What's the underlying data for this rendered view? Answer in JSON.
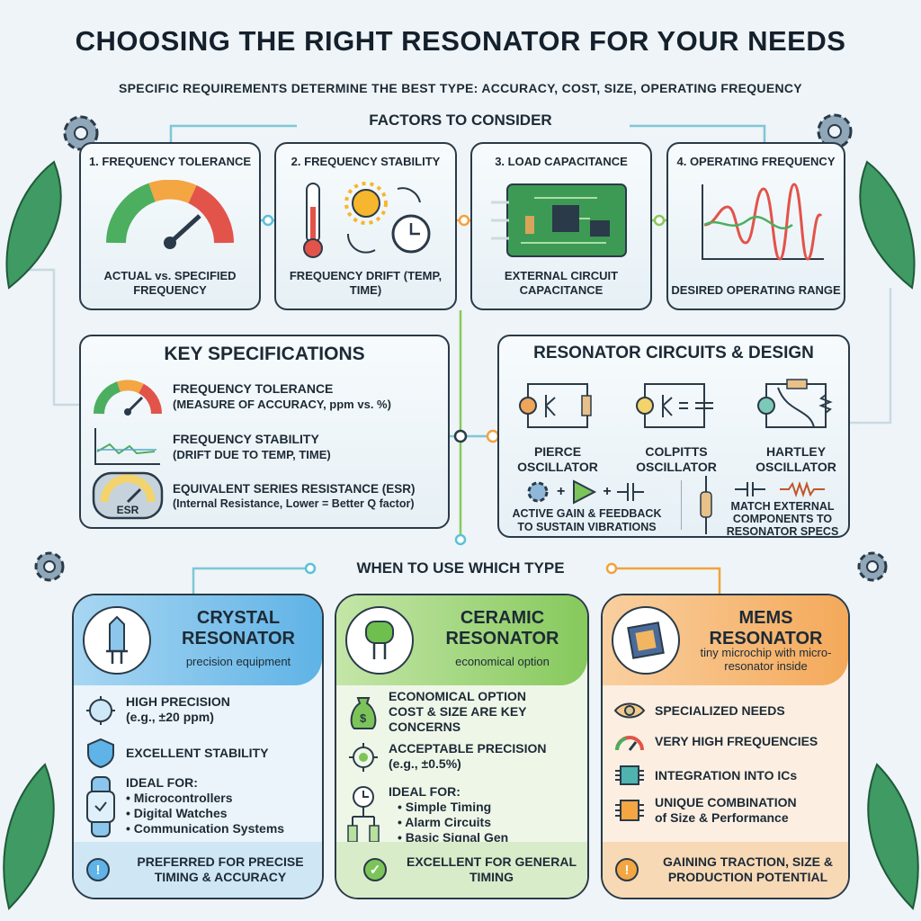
{
  "title": "CHOOSING THE RIGHT RESONATOR FOR YOUR NEEDS",
  "subtitle": "SPECIFIC REQUIREMENTS DETERMINE THE BEST TYPE: ACCURACY, COST, SIZE, OPERATING FREQUENCY",
  "factors": {
    "heading": "FACTORS TO CONSIDER",
    "items": [
      {
        "title": "1. FREQUENCY TOLERANCE",
        "desc": "ACTUAL vs. SPECIFIED FREQUENCY",
        "icon": "gauge-icon"
      },
      {
        "title": "2. FREQUENCY STABILITY",
        "desc": "FREQUENCY DRIFT (TEMP, TIME)",
        "icon": "thermometer-sun-clock-icon"
      },
      {
        "title": "3. LOAD CAPACITANCE",
        "desc": "EXTERNAL CIRCUIT CAPACITANCE",
        "icon": "circuit-board-icon"
      },
      {
        "title": "4. OPERATING FREQUENCY",
        "desc": "DESIRED OPERATING RANGE",
        "icon": "waveform-icon"
      }
    ]
  },
  "specs": {
    "heading": "KEY SPECIFICATIONS",
    "items": [
      {
        "title": "FREQUENCY TOLERANCE",
        "sub": "(MEASURE OF ACCURACY, ppm vs. %)"
      },
      {
        "title": "FREQUENCY STABILITY",
        "sub": "(DRIFT DUE TO TEMP, TIME)"
      },
      {
        "title": "EQUIVALENT SERIES RESISTANCE (ESR)",
        "sub": "(Internal Resistance, Lower = Better Q factor)",
        "badge": "ESR"
      }
    ]
  },
  "circuits": {
    "heading": "RESONATOR CIRCUITS & DESIGN",
    "oscillators": [
      "PIERCE OSCILLATOR",
      "COLPITTS OSCILLATOR",
      "HARTLEY OSCILLATOR"
    ],
    "gain": "ACTIVE GAIN & FEEDBACK TO SUSTAIN VIBRATIONS",
    "plus": "+",
    "match": "MATCH EXTERNAL COMPONENTS TO RESONATOR SPECS"
  },
  "types": {
    "heading": "WHEN TO USE WHICH TYPE",
    "items": [
      {
        "name": "CRYSTAL RESONATOR",
        "sub": "precision equipment",
        "color": "#5fb3e6",
        "points": [
          {
            "t": "HIGH PRECISION",
            "n": "(e.g., ±20 ppm)"
          },
          {
            "t": "EXCELLENT STABILITY"
          }
        ],
        "ideal": "IDEAL FOR:",
        "ideal_list": [
          "Microcontrollers",
          "Digital Watches",
          "Communication Systems"
        ],
        "footer": "PREFERRED FOR PRECISE TIMING & ACCURACY"
      },
      {
        "name": "CERAMIC RESONATOR",
        "sub": "economical option",
        "color": "#86c95c",
        "points": [
          {
            "t": "ECONOMICAL OPTION COST & SIZE ARE KEY CONCERNS"
          },
          {
            "t": "ACCEPTABLE PRECISION",
            "n": "(e.g., ±0.5%)"
          }
        ],
        "ideal": "IDEAL FOR:",
        "ideal_list": [
          "Simple Timing",
          "Alarm Circuits",
          "Basic Signal Gen"
        ],
        "footer": "EXCELLENT FOR GENERAL TIMING"
      },
      {
        "name": "MEMS RESONATOR",
        "sub": "tiny microchip with micro-resonator inside",
        "color": "#f4a95a",
        "points": [
          {
            "t": "SPECIALIZED NEEDS"
          },
          {
            "t": "VERY HIGH FREQUENCIES"
          },
          {
            "t": "INTEGRATION INTO ICs"
          },
          {
            "t": "UNIQUE COMBINATION",
            "n": "of Size & Performance"
          }
        ],
        "footer": "GAINING TRACTION, SIZE & PRODUCTION POTENTIAL"
      }
    ]
  }
}
